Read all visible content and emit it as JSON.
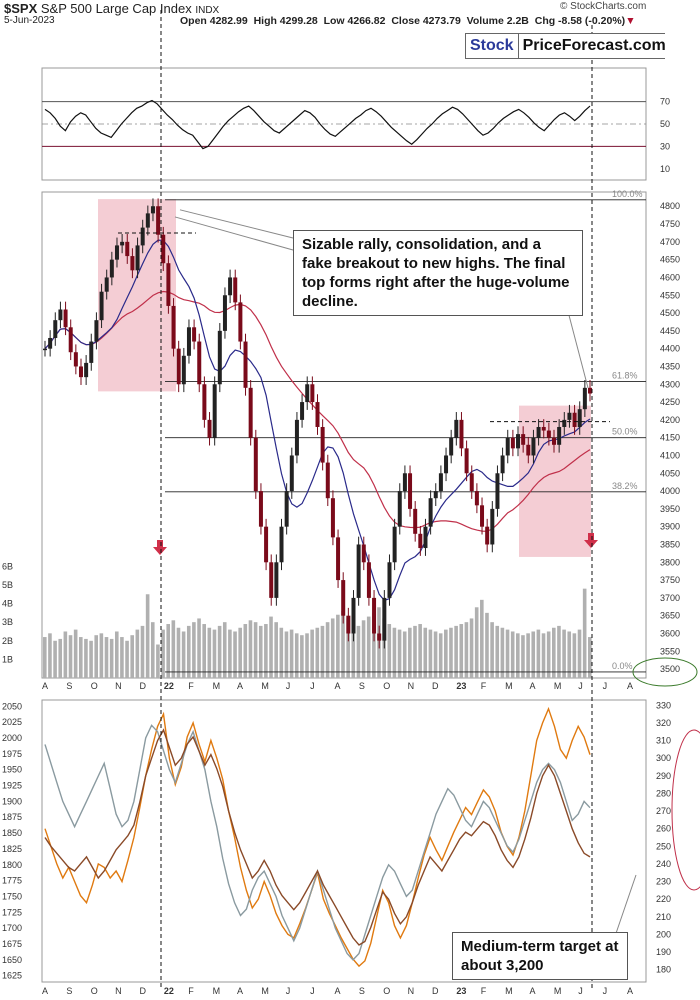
{
  "header": {
    "symbol": "$SPX",
    "name": "S&P 500 Large Cap Index",
    "exchange": "INDX",
    "date": "5-Jun-2023",
    "open": "Open 4282.99",
    "high": "High 4299.28",
    "low": "Low 4266.82",
    "close": "Close 4273.79",
    "volume": "Volume 2.2B",
    "change": "Chg -8.58 (-0.20%)",
    "credit": "© StockCharts.com"
  },
  "brand": {
    "part1": "Stock",
    "part2": "PriceForecast.com"
  },
  "annotations": {
    "top_note": "Sizable rally, consolidation, and a fake breakout to new highs. The final top forms right after the huge-volume decline.",
    "bottom_note": "Medium-term target at about 3,200"
  },
  "colors": {
    "price_up": "#222222",
    "price_down": "#7a0a1a",
    "ma50": "#2a2a8a",
    "ma200": "#c0304a",
    "highlight": "#f2c4cc",
    "volume": "#b0b0b0",
    "orange_line": "#e07a10",
    "gray_line": "#8a9aa0",
    "brown_line": "#8a4a28",
    "arrow": "#d0304a"
  },
  "chart_data": [
    {
      "type": "line",
      "panel": "rsi",
      "y_ticks": [
        10,
        30,
        50,
        70
      ],
      "levels": [
        30,
        50,
        70
      ],
      "ylim": [
        0,
        100
      ],
      "values": [
        63,
        60,
        55,
        48,
        44,
        52,
        57,
        60,
        58,
        52,
        46,
        42,
        40,
        38,
        44,
        50,
        55,
        60,
        64,
        66,
        69,
        71,
        68,
        63,
        58,
        54,
        49,
        45,
        42,
        40,
        34,
        28,
        30,
        36,
        42,
        48,
        53,
        57,
        61,
        64,
        66,
        62,
        57,
        52,
        48,
        44,
        42,
        46,
        50,
        54,
        58,
        62,
        60,
        56,
        50,
        45,
        41,
        39,
        43,
        47,
        51,
        55,
        58,
        62,
        64,
        61,
        57,
        52,
        47,
        43,
        39,
        35,
        32,
        36,
        41,
        46,
        50,
        55,
        59,
        62,
        65,
        63,
        59,
        54,
        49,
        44,
        40,
        42,
        46,
        51,
        55,
        58,
        61,
        63,
        60,
        56,
        51,
        47,
        44,
        49,
        54,
        58,
        60,
        57,
        53,
        57,
        62,
        66
      ]
    },
    {
      "type": "line",
      "panel": "price",
      "title": "S&P 500 Large Cap Index",
      "x_labels": [
        "A",
        "S",
        "O",
        "N",
        "D",
        "22",
        "F",
        "M",
        "A",
        "M",
        "J",
        "J",
        "A",
        "S",
        "O",
        "N",
        "D",
        "23",
        "F",
        "M",
        "A",
        "M",
        "J",
        "J",
        "A"
      ],
      "y_ticks": [
        3500,
        3550,
        3600,
        3650,
        3700,
        3750,
        3800,
        3850,
        3900,
        3950,
        4000,
        4050,
        4100,
        4150,
        4200,
        4250,
        4300,
        4350,
        4400,
        4450,
        4500,
        4550,
        4600,
        4650,
        4700,
        4750,
        4800
      ],
      "ylim": [
        3475,
        4840
      ],
      "volume_ticks": [
        "1B",
        "2B",
        "3B",
        "4B",
        "5B",
        "6B"
      ],
      "fib_levels": [
        {
          "label": "100.0%",
          "value": 4818
        },
        {
          "label": "61.8%",
          "value": 4308
        },
        {
          "label": "50.0%",
          "value": 4150
        },
        {
          "label": "38.2%",
          "value": 3998
        },
        {
          "label": "0.0%",
          "value": 3492
        }
      ],
      "close": [
        4400,
        4430,
        4480,
        4510,
        4460,
        4390,
        4350,
        4320,
        4360,
        4420,
        4480,
        4560,
        4600,
        4650,
        4690,
        4700,
        4660,
        4620,
        4690,
        4740,
        4780,
        4800,
        4720,
        4640,
        4520,
        4400,
        4300,
        4380,
        4460,
        4420,
        4300,
        4200,
        4150,
        4300,
        4450,
        4550,
        4600,
        4530,
        4420,
        4290,
        4150,
        4000,
        3900,
        3800,
        3700,
        3800,
        3900,
        4000,
        4100,
        4200,
        4250,
        4300,
        4250,
        4180,
        4080,
        3980,
        3870,
        3750,
        3650,
        3600,
        3700,
        3850,
        3800,
        3700,
        3600,
        3580,
        3700,
        3800,
        3900,
        4000,
        4050,
        3950,
        3880,
        3840,
        3900,
        3980,
        4000,
        4050,
        4100,
        4150,
        4200,
        4120,
        4050,
        4000,
        3960,
        3900,
        3850,
        3950,
        4050,
        4100,
        4150,
        4120,
        4160,
        4130,
        4100,
        4150,
        4180,
        4170,
        4150,
        4130,
        4180,
        4200,
        4220,
        4180,
        4230,
        4290,
        4274
      ],
      "volume_b": [
        2.2,
        2.4,
        2.0,
        2.1,
        2.5,
        2.3,
        2.6,
        2.2,
        2.1,
        2.0,
        2.3,
        2.4,
        2.2,
        2.1,
        2.5,
        2.2,
        2.0,
        2.3,
        2.6,
        2.8,
        4.5,
        3.0,
        1.8,
        2.6,
        2.9,
        3.1,
        2.7,
        2.5,
        2.8,
        3.0,
        3.2,
        2.9,
        2.7,
        2.6,
        2.8,
        3.0,
        2.6,
        2.5,
        2.7,
        2.9,
        3.1,
        3.0,
        2.8,
        2.9,
        3.3,
        3.0,
        2.7,
        2.5,
        2.6,
        2.4,
        2.3,
        2.4,
        2.6,
        2.7,
        2.8,
        3.0,
        3.2,
        3.4,
        3.6,
        3.2,
        3.0,
        2.8,
        3.1,
        3.3,
        3.5,
        3.8,
        3.2,
        2.9,
        2.7,
        2.6,
        2.5,
        2.7,
        2.8,
        2.9,
        2.7,
        2.6,
        2.5,
        2.4,
        2.6,
        2.7,
        2.8,
        2.9,
        3.0,
        3.2,
        3.8,
        4.2,
        3.5,
        3.0,
        2.8,
        2.7,
        2.6,
        2.5,
        2.4,
        2.3,
        2.4,
        2.5,
        2.6,
        2.4,
        2.5,
        2.7,
        2.8,
        2.6,
        2.5,
        2.4,
        2.6,
        4.8,
        2.2
      ]
    },
    {
      "type": "line",
      "panel": "comparison",
      "x_labels": [
        "A",
        "S",
        "O",
        "N",
        "D",
        "22",
        "F",
        "M",
        "A",
        "M",
        "J",
        "J",
        "A",
        "S",
        "O",
        "N",
        "D",
        "23",
        "F",
        "M",
        "A",
        "M",
        "J",
        "J",
        "A"
      ],
      "y_ticks_left": [
        1625,
        1650,
        1675,
        1700,
        1725,
        1750,
        1775,
        1800,
        1825,
        1850,
        1875,
        1900,
        1925,
        1950,
        1975,
        2000,
        2025,
        2050
      ],
      "y_ticks_right": [
        180,
        190,
        200,
        210,
        220,
        230,
        240,
        250,
        260,
        270,
        280,
        290,
        300,
        310,
        320,
        330
      ],
      "ylim_left": [
        1615,
        2060
      ],
      "ylim_right": [
        173,
        333
      ],
      "series": [
        {
          "color": "#e07a10",
          "axis": "right",
          "values": [
            260,
            250,
            240,
            232,
            238,
            230,
            222,
            218,
            228,
            240,
            238,
            232,
            236,
            230,
            242,
            255,
            272,
            290,
            305,
            318,
            325,
            300,
            285,
            295,
            312,
            320,
            308,
            298,
            310,
            300,
            288,
            270,
            255,
            238,
            225,
            215,
            220,
            230,
            222,
            212,
            205,
            200,
            198,
            206,
            215,
            225,
            235,
            220,
            212,
            205,
            198,
            192,
            186,
            182,
            185,
            195,
            210,
            225,
            218,
            205,
            198,
            205,
            218,
            232,
            245,
            255,
            248,
            242,
            250,
            258,
            265,
            272,
            268,
            275,
            282,
            278,
            270,
            258,
            250,
            245,
            255,
            270,
            290,
            310,
            320,
            328,
            318,
            305,
            300,
            310,
            318,
            312,
            302
          ]
        },
        {
          "color": "#8a9aa0",
          "axis": "left",
          "values": [
            1990,
            1960,
            1930,
            1900,
            1880,
            1860,
            1880,
            1900,
            1920,
            1940,
            1960,
            1920,
            1880,
            1860,
            1870,
            1900,
            1950,
            2000,
            2020,
            2010,
            1980,
            1950,
            1930,
            1960,
            1990,
            2010,
            1980,
            1950,
            1900,
            1860,
            1810,
            1770,
            1740,
            1720,
            1730,
            1760,
            1780,
            1790,
            1770,
            1750,
            1720,
            1700,
            1680,
            1700,
            1730,
            1760,
            1790,
            1760,
            1730,
            1700,
            1680,
            1660,
            1650,
            1660,
            1690,
            1720,
            1750,
            1780,
            1800,
            1790,
            1770,
            1750,
            1760,
            1790,
            1820,
            1850,
            1880,
            1900,
            1920,
            1910,
            1890,
            1870,
            1860,
            1880,
            1900,
            1890,
            1870,
            1850,
            1830,
            1820,
            1840,
            1870,
            1900,
            1930,
            1950,
            1960,
            1950,
            1930,
            1900,
            1870,
            1880,
            1900,
            1890
          ]
        },
        {
          "color": "#8a4a28",
          "axis": "right",
          "values": [
            255,
            250,
            246,
            242,
            238,
            236,
            240,
            244,
            238,
            232,
            236,
            242,
            248,
            252,
            256,
            262,
            275,
            290,
            300,
            310,
            316,
            306,
            296,
            300,
            308,
            312,
            304,
            296,
            302,
            294,
            284,
            270,
            258,
            248,
            240,
            232,
            236,
            242,
            236,
            228,
            222,
            218,
            214,
            218,
            224,
            230,
            236,
            228,
            222,
            216,
            210,
            204,
            198,
            194,
            196,
            204,
            214,
            224,
            220,
            212,
            206,
            210,
            218,
            228,
            236,
            244,
            240,
            236,
            242,
            248,
            254,
            258,
            256,
            260,
            264,
            262,
            256,
            248,
            242,
            238,
            244,
            254,
            266,
            280,
            290,
            296,
            290,
            280,
            270,
            260,
            252,
            246,
            244
          ]
        }
      ]
    }
  ]
}
